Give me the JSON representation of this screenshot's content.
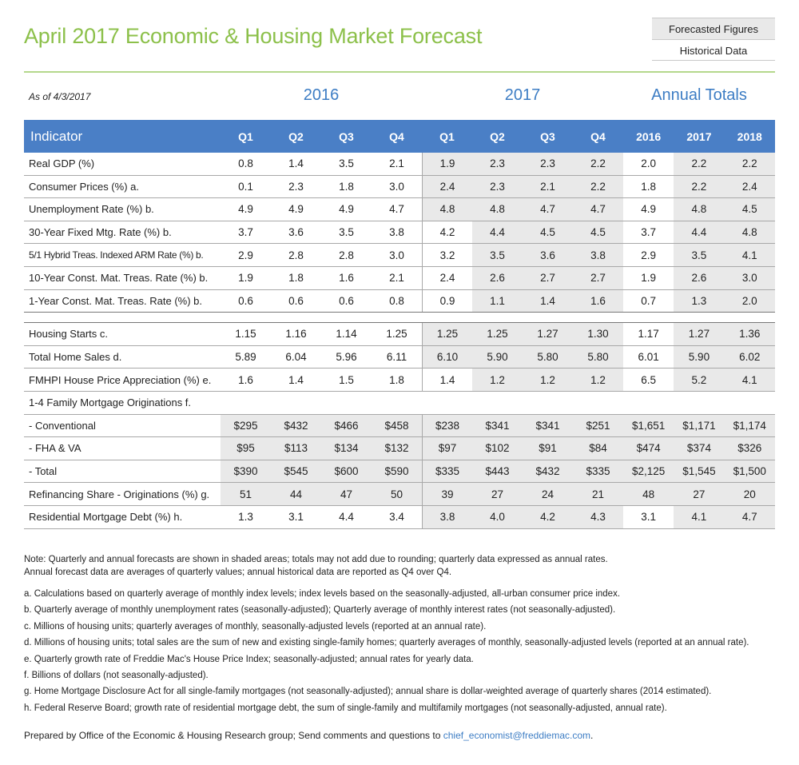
{
  "title": "April 2017 Economic & Housing Market Forecast",
  "legend": {
    "forecasted": "Forecasted Figures",
    "historical": "Historical Data"
  },
  "as_of": "As of 4/3/2017",
  "year_labels": {
    "y2016": "2016",
    "y2017": "2017",
    "annual": "Annual Totals"
  },
  "header": {
    "indicator": "Indicator",
    "cols": [
      "Q1",
      "Q2",
      "Q3",
      "Q4",
      "Q1",
      "Q2",
      "Q3",
      "Q4",
      "2016",
      "2017",
      "2018"
    ]
  },
  "rows": [
    {
      "label": "Real GDP (%)",
      "values": [
        "0.8",
        "1.4",
        "3.5",
        "2.1",
        "1.9",
        "2.3",
        "2.3",
        "2.2",
        "2.0",
        "2.2",
        "2.2"
      ]
    },
    {
      "label": "Consumer Prices (%) a.",
      "values": [
        "0.1",
        "2.3",
        "1.8",
        "3.0",
        "2.4",
        "2.3",
        "2.1",
        "2.2",
        "1.8",
        "2.2",
        "2.4"
      ]
    },
    {
      "label": "Unemployment Rate (%) b.",
      "values": [
        "4.9",
        "4.9",
        "4.9",
        "4.7",
        "4.8",
        "4.8",
        "4.7",
        "4.7",
        "4.9",
        "4.8",
        "4.5"
      ]
    },
    {
      "label": "30-Year Fixed Mtg. Rate (%) b.",
      "values": [
        "3.7",
        "3.6",
        "3.5",
        "3.8",
        "4.2",
        "4.4",
        "4.5",
        "4.5",
        "3.7",
        "4.4",
        "4.8"
      ]
    },
    {
      "label": "5/1 Hybrid Treas. Indexed ARM Rate (%) b.",
      "values": [
        "2.9",
        "2.8",
        "2.8",
        "3.0",
        "3.2",
        "3.5",
        "3.6",
        "3.8",
        "2.9",
        "3.5",
        "4.1"
      ]
    },
    {
      "label": "10-Year Const. Mat. Treas. Rate (%) b.",
      "values": [
        "1.9",
        "1.8",
        "1.6",
        "2.1",
        "2.4",
        "2.6",
        "2.7",
        "2.7",
        "1.9",
        "2.6",
        "3.0"
      ]
    },
    {
      "label": "1-Year Const. Mat. Treas. Rate (%) b.",
      "values": [
        "0.6",
        "0.6",
        "0.6",
        "0.8",
        "0.9",
        "1.1",
        "1.4",
        "1.6",
        "0.7",
        "1.3",
        "2.0"
      ]
    },
    {
      "label": "Housing Starts c.",
      "values": [
        "1.15",
        "1.16",
        "1.14",
        "1.25",
        "1.25",
        "1.25",
        "1.27",
        "1.30",
        "1.17",
        "1.27",
        "1.36"
      ]
    },
    {
      "label": "Total Home Sales d.",
      "values": [
        "5.89",
        "6.04",
        "5.96",
        "6.11",
        "6.10",
        "5.90",
        "5.80",
        "5.80",
        "6.01",
        "5.90",
        "6.02"
      ]
    },
    {
      "label": "FMHPI House Price Appreciation (%) e.",
      "values": [
        "1.6",
        "1.4",
        "1.5",
        "1.8",
        "1.4",
        "1.2",
        "1.2",
        "1.2",
        "6.5",
        "5.2",
        "4.1"
      ]
    },
    {
      "label": "1-4 Family Mortgage Originations f.",
      "values": [
        "",
        "",
        "",
        "",
        "",
        "",
        "",
        "",
        "",
        "",
        ""
      ]
    },
    {
      "label": " - Conventional",
      "values": [
        "$295",
        "$432",
        "$466",
        "$458",
        "$238",
        "$341",
        "$341",
        "$251",
        "$1,651",
        "$1,171",
        "$1,174"
      ]
    },
    {
      "label": " - FHA & VA",
      "values": [
        "$95",
        "$113",
        "$134",
        "$132",
        "$97",
        "$102",
        "$91",
        "$84",
        "$474",
        "$374",
        "$326"
      ]
    },
    {
      "label": " - Total",
      "values": [
        "$390",
        "$545",
        "$600",
        "$590",
        "$335",
        "$443",
        "$432",
        "$335",
        "$2,125",
        "$1,545",
        "$1,500"
      ]
    },
    {
      "label": "Refinancing Share - Originations (%) g.",
      "values": [
        "51",
        "44",
        "47",
        "50",
        "39",
        "27",
        "24",
        "21",
        "48",
        "27",
        "20"
      ]
    },
    {
      "label": "Residential Mortgage Debt (%) h.",
      "values": [
        "1.3",
        "3.1",
        "4.4",
        "3.4",
        "3.8",
        "4.0",
        "4.2",
        "4.3",
        "3.1",
        "4.1",
        "4.7"
      ]
    }
  ],
  "notes": {
    "line1": "Note: Quarterly and annual forecasts are shown in shaded areas; totals may not add due to rounding; quarterly data expressed as annual rates.",
    "line2": "Annual forecast data are averages of quarterly values; annual historical data are reported as Q4 over Q4.",
    "footnotes": [
      "a. Calculations based on quarterly average of monthly index levels; index levels based on the seasonally-adjusted, all-urban consumer price index.",
      "b. Quarterly average of monthly unemployment rates (seasonally-adjusted); Quarterly average of monthly interest rates (not seasonally-adjusted).",
      "c. Millions of housing units; quarterly averages of monthly, seasonally-adjusted levels (reported at an annual rate).",
      "d. Millions of housing units; total sales are the sum of new and existing single-family homes; quarterly averages of monthly, seasonally-adjusted levels (reported at an annual rate).",
      "e. Quarterly growth rate of Freddie Mac's House Price Index; seasonally-adjusted; annual rates for yearly data.",
      "f. Billions of dollars (not seasonally-adjusted).",
      "g. Home Mortgage Disclosure Act for all single-family mortgages (not seasonally-adjusted); annual share is dollar-weighted average of quarterly shares (2014 estimated).",
      "h. Federal Reserve Board; growth rate of residential mortgage debt, the sum of single-family and multifamily mortgages (not seasonally-adjusted, annual rate)."
    ]
  },
  "prepared": {
    "text": "Prepared by Office of the Economic & Housing Research group; Send comments and questions to ",
    "email": "chief_economist@freddiemac.com",
    "suffix": "."
  }
}
